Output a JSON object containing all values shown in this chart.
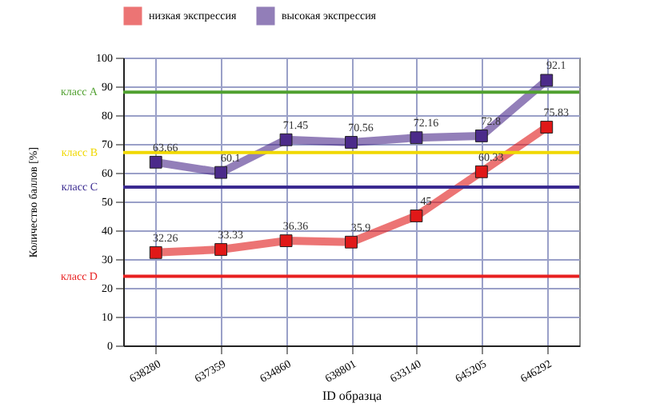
{
  "chart_data": {
    "type": "line",
    "xlabel": "ID образца",
    "ylabel": "Количество баллов [%]",
    "categories": [
      "638280",
      "637359",
      "634860",
      "638801",
      "633140",
      "645205",
      "646292"
    ],
    "series": [
      {
        "name": "низкая экспрессия",
        "color": "#e01818",
        "values": [
          32.26,
          33.33,
          36.36,
          35.9,
          45,
          60.33,
          75.83
        ]
      },
      {
        "name": "высокая экспрессия",
        "color": "#4b2a8a",
        "values": [
          63.66,
          60.1,
          71.45,
          70.56,
          72.16,
          72.8,
          92.1
        ]
      }
    ],
    "ylim": [
      0,
      100
    ],
    "yticks": [
      0,
      10,
      20,
      30,
      40,
      50,
      60,
      70,
      80,
      90,
      100
    ],
    "ref_lines": [
      {
        "axis": "y",
        "value": 88,
        "label": "класс A",
        "color": "#50a030"
      },
      {
        "axis": "y",
        "value": 67,
        "label": "класс B",
        "color": "#f0d800"
      },
      {
        "axis": "y",
        "value": 55,
        "label": "класс C",
        "color": "#3a2a90"
      },
      {
        "axis": "y",
        "value": 24,
        "label": "класс D",
        "color": "#e82020"
      }
    ],
    "grid": true,
    "legend": "top left",
    "marker": "square",
    "line_style": "solid",
    "data_labels": true
  }
}
